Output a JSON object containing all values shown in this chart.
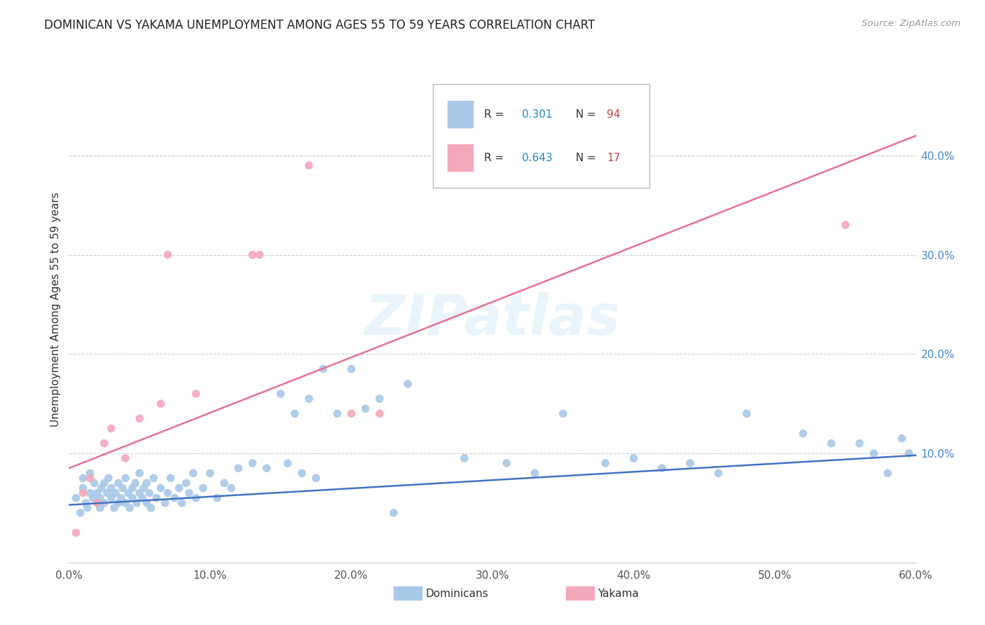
{
  "title": "DOMINICAN VS YAKAMA UNEMPLOYMENT AMONG AGES 55 TO 59 YEARS CORRELATION CHART",
  "source": "Source: ZipAtlas.com",
  "ylabel": "Unemployment Among Ages 55 to 59 years",
  "dominican_R": 0.301,
  "dominican_N": 94,
  "yakama_R": 0.643,
  "yakama_N": 17,
  "dominican_color": "#a8c8e8",
  "yakama_color": "#f4a8bc",
  "dominican_line_color": "#4472c4",
  "yakama_line_color": "#e87090",
  "legend_R_color": "#2288cc",
  "legend_N_color": "#cc4444",
  "xlim": [
    0.0,
    0.6
  ],
  "ylim": [
    -0.01,
    0.5
  ],
  "dom_line_x0": 0.0,
  "dom_line_y0": 0.048,
  "dom_line_x1": 0.6,
  "dom_line_y1": 0.098,
  "yak_line_x0": 0.0,
  "yak_line_y0": 0.085,
  "yak_line_x1": 0.6,
  "yak_line_y1": 0.42,
  "dom_x": [
    0.005,
    0.008,
    0.01,
    0.01,
    0.012,
    0.013,
    0.015,
    0.015,
    0.017,
    0.018,
    0.02,
    0.02,
    0.022,
    0.022,
    0.023,
    0.025,
    0.025,
    0.027,
    0.028,
    0.03,
    0.03,
    0.032,
    0.033,
    0.035,
    0.035,
    0.037,
    0.038,
    0.04,
    0.04,
    0.042,
    0.043,
    0.045,
    0.045,
    0.047,
    0.048,
    0.05,
    0.05,
    0.052,
    0.053,
    0.055,
    0.055,
    0.057,
    0.058,
    0.06,
    0.062,
    0.065,
    0.068,
    0.07,
    0.072,
    0.075,
    0.078,
    0.08,
    0.083,
    0.085,
    0.088,
    0.09,
    0.095,
    0.1,
    0.105,
    0.11,
    0.115,
    0.12,
    0.13,
    0.14,
    0.15,
    0.155,
    0.16,
    0.165,
    0.17,
    0.175,
    0.18,
    0.19,
    0.2,
    0.21,
    0.22,
    0.23,
    0.24,
    0.28,
    0.31,
    0.33,
    0.35,
    0.38,
    0.4,
    0.42,
    0.44,
    0.46,
    0.48,
    0.52,
    0.54,
    0.56,
    0.57,
    0.58,
    0.59,
    0.595
  ],
  "dom_y": [
    0.055,
    0.04,
    0.065,
    0.075,
    0.05,
    0.045,
    0.06,
    0.08,
    0.055,
    0.07,
    0.05,
    0.06,
    0.045,
    0.055,
    0.065,
    0.07,
    0.05,
    0.06,
    0.075,
    0.055,
    0.065,
    0.045,
    0.06,
    0.05,
    0.07,
    0.055,
    0.065,
    0.05,
    0.075,
    0.06,
    0.045,
    0.065,
    0.055,
    0.07,
    0.05,
    0.06,
    0.08,
    0.055,
    0.065,
    0.05,
    0.07,
    0.06,
    0.045,
    0.075,
    0.055,
    0.065,
    0.05,
    0.06,
    0.075,
    0.055,
    0.065,
    0.05,
    0.07,
    0.06,
    0.08,
    0.055,
    0.065,
    0.08,
    0.055,
    0.07,
    0.065,
    0.085,
    0.09,
    0.085,
    0.16,
    0.09,
    0.14,
    0.08,
    0.155,
    0.075,
    0.185,
    0.14,
    0.185,
    0.145,
    0.155,
    0.04,
    0.17,
    0.095,
    0.09,
    0.08,
    0.14,
    0.09,
    0.095,
    0.085,
    0.09,
    0.08,
    0.14,
    0.12,
    0.11,
    0.11,
    0.1,
    0.08,
    0.115,
    0.1
  ],
  "yak_x": [
    0.005,
    0.01,
    0.015,
    0.02,
    0.025,
    0.03,
    0.04,
    0.05,
    0.065,
    0.07,
    0.09,
    0.13,
    0.135,
    0.17,
    0.2,
    0.22,
    0.55
  ],
  "yak_y": [
    0.02,
    0.06,
    0.075,
    0.05,
    0.11,
    0.125,
    0.095,
    0.135,
    0.15,
    0.3,
    0.16,
    0.3,
    0.3,
    0.39,
    0.14,
    0.14,
    0.33
  ]
}
